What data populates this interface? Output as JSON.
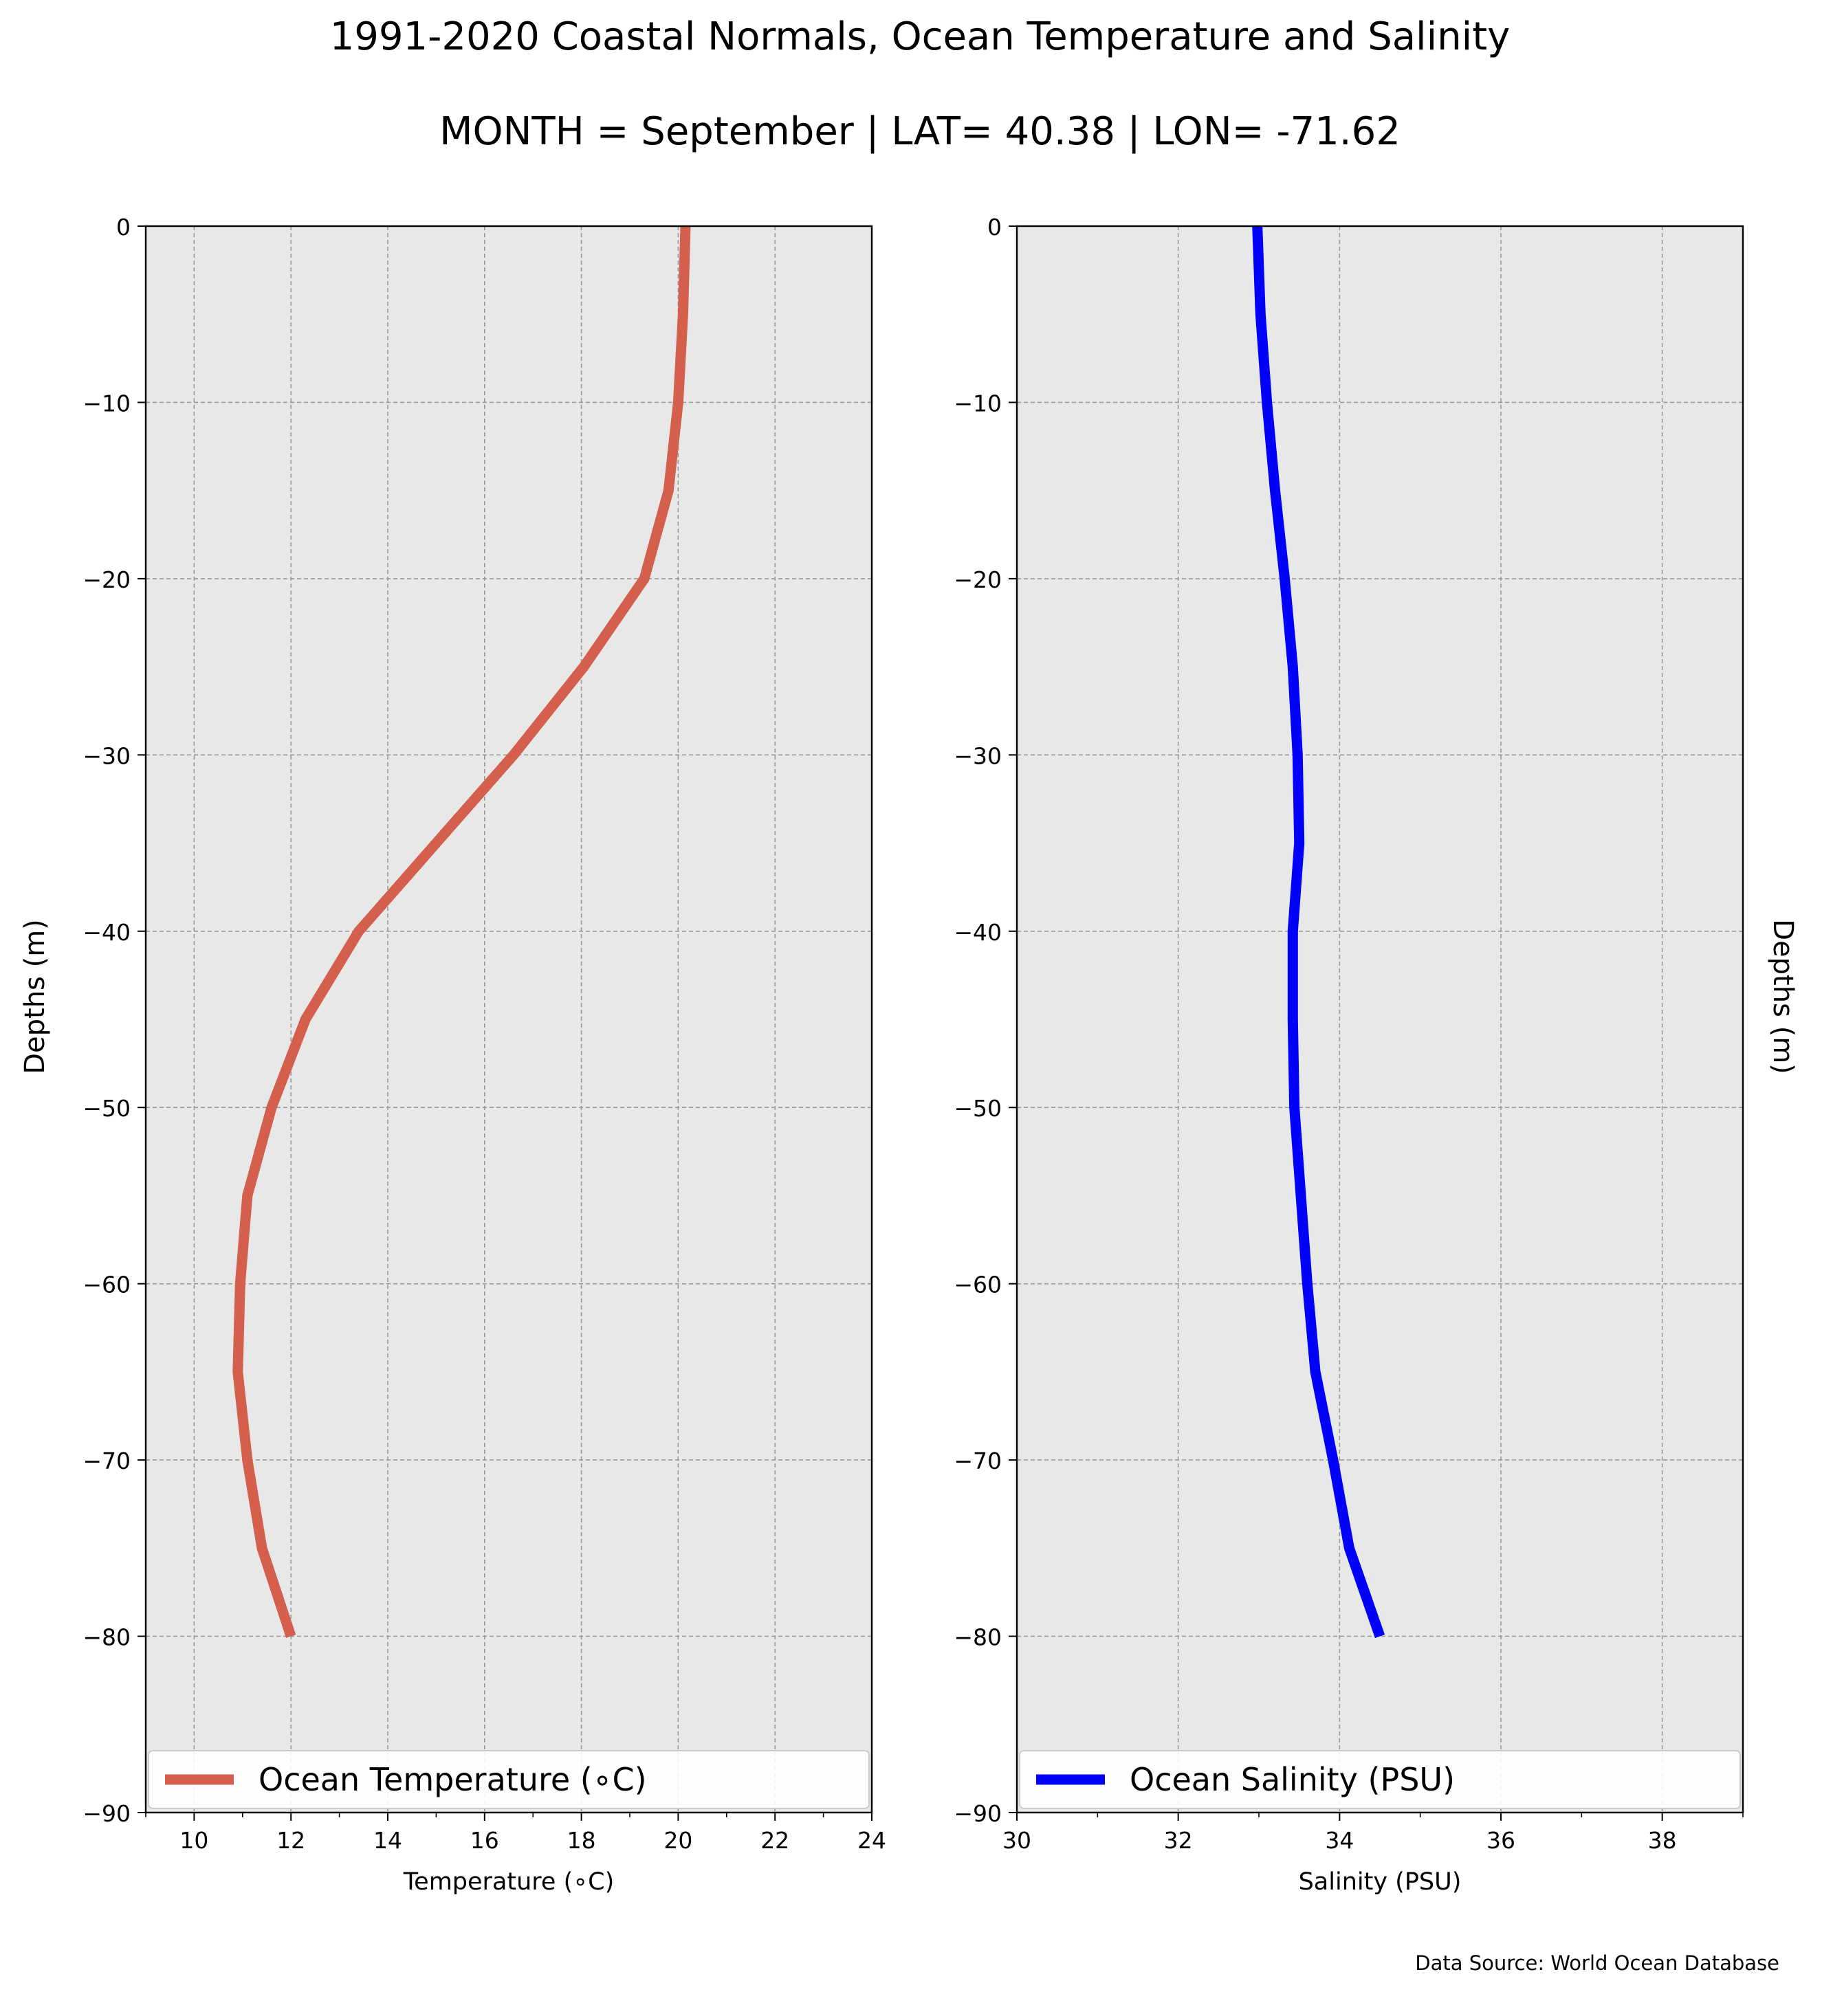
{
  "page": {
    "title": "1991-2020 Coastal Normals, Ocean Temperature and Salinity",
    "subtitle": "MONTH = September | LAT= 40.38 | LON= -71.62",
    "footer": "Data Source: World Ocean Database"
  },
  "chart_data": [
    {
      "type": "line",
      "xlabel": "Temperature (∘C)",
      "ylabel": "Depths (m)",
      "xlim": [
        9,
        24
      ],
      "ylim": [
        -90,
        0
      ],
      "xticks": [
        10,
        12,
        14,
        16,
        18,
        20,
        22,
        24
      ],
      "xminor": [
        9,
        11,
        13,
        15,
        17,
        19,
        21,
        23
      ],
      "yticks": [
        0,
        -10,
        -20,
        -30,
        -40,
        -50,
        -60,
        -70,
        -80,
        -90
      ],
      "grid": true,
      "legend": "bottom",
      "color": "#d45f4c",
      "series": [
        {
          "name": "Ocean Temperature (∘C)",
          "x": [
            20.15,
            20.1,
            20.0,
            19.8,
            19.3,
            18.05,
            16.6,
            15.0,
            13.4,
            12.3,
            11.6,
            11.1,
            10.95,
            10.9,
            11.1,
            11.4,
            12.0
          ],
          "y": [
            0,
            -5,
            -10,
            -15,
            -20,
            -25,
            -30,
            -35,
            -40,
            -45,
            -50,
            -55,
            -60,
            -65,
            -70,
            -75,
            -80
          ]
        }
      ]
    },
    {
      "type": "line",
      "xlabel": "Salinity (PSU)",
      "ylabel": "Depths (m)",
      "xlim": [
        30,
        39
      ],
      "ylim": [
        -90,
        0
      ],
      "xticks": [
        30,
        32,
        34,
        36,
        38
      ],
      "xminor": [
        31,
        33,
        35,
        37,
        39
      ],
      "yticks": [
        0,
        -10,
        -20,
        -30,
        -40,
        -50,
        -60,
        -70,
        -80,
        -90
      ],
      "grid": true,
      "legend": "bottom",
      "color": "#0000ff",
      "series": [
        {
          "name": "Ocean Salinity (PSU)",
          "x": [
            32.98,
            33.02,
            33.1,
            33.2,
            33.32,
            33.42,
            33.48,
            33.5,
            33.42,
            33.42,
            33.44,
            33.52,
            33.6,
            33.7,
            33.92,
            34.12,
            34.5
          ],
          "y": [
            0,
            -5,
            -10,
            -15,
            -20,
            -25,
            -30,
            -35,
            -40,
            -45,
            -50,
            -55,
            -60,
            -65,
            -70,
            -75,
            -80
          ]
        }
      ]
    }
  ]
}
